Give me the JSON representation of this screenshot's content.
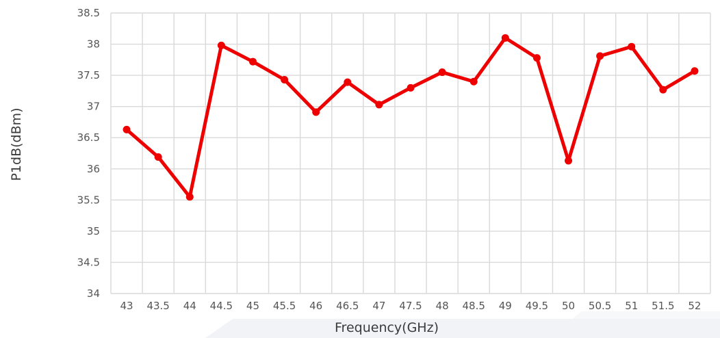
{
  "chart_data": {
    "type": "line",
    "xlabel": "Frequency(GHz)",
    "ylabel": "P1dB(dBm)",
    "x": [
      43,
      43.5,
      44,
      44.5,
      45,
      45.5,
      46,
      46.5,
      47,
      47.5,
      48,
      48.5,
      49,
      49.5,
      50,
      50.5,
      51,
      51.5,
      52
    ],
    "x_tick_labels": [
      "43",
      "43.5",
      "44",
      "44.5",
      "45",
      "45.5",
      "46",
      "46.5",
      "47",
      "47.5",
      "48",
      "48.5",
      "49",
      "49.5",
      "50",
      "50.5",
      "51",
      "51.5",
      "52"
    ],
    "y_ticks": [
      34,
      34.5,
      35,
      35.5,
      36,
      36.5,
      37,
      37.5,
      38,
      38.5
    ],
    "y_tick_labels": [
      "34",
      "34.5",
      "35",
      "35.5",
      "36",
      "36.5",
      "37",
      "37.5",
      "38",
      "38.5"
    ],
    "ylim": [
      34,
      38.5
    ],
    "grid": true,
    "series": [
      {
        "color": "#ee0000",
        "values": [
          36.63,
          36.19,
          35.55,
          37.98,
          37.72,
          37.43,
          36.91,
          37.39,
          37.03,
          37.3,
          37.55,
          37.4,
          38.1,
          37.78,
          36.13,
          37.81,
          37.96,
          37.27,
          37.57
        ]
      }
    ]
  }
}
